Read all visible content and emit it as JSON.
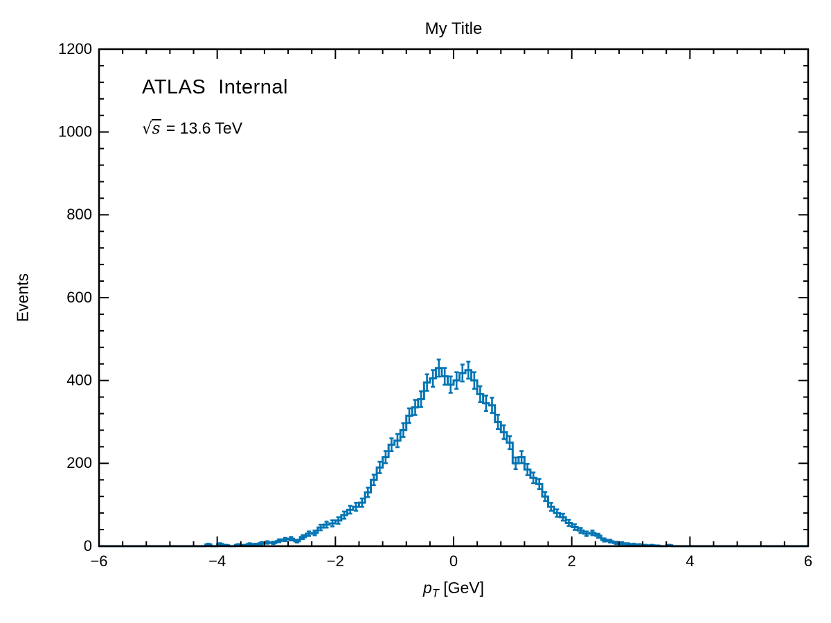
{
  "figure": {
    "title": "My Title",
    "background": "#ffffff"
  },
  "annotations": {
    "experiment": "ATLAS",
    "status": "Internal",
    "sqrt_prefix": "√",
    "sqrt_var": "s",
    "energy_text": " = 13.6 TeV"
  },
  "axes": {
    "ylabel": "Events",
    "xlabel": {
      "var": "p",
      "sub": "T",
      "unit": " [GeV]"
    },
    "x_tick_labels": [
      "−6",
      "−4",
      "−2",
      "0",
      "2",
      "4",
      "6"
    ],
    "y_tick_labels": [
      "0",
      "200",
      "400",
      "600",
      "800",
      "1000",
      "1200"
    ]
  },
  "chart_data": {
    "type": "histogram",
    "title": "My Title",
    "xlabel": "pT [GeV]",
    "ylabel": "Events",
    "xlim": [
      -6,
      6
    ],
    "ylim": [
      0,
      1200
    ],
    "x_major_step": 2,
    "x_minor_step": 0.4,
    "y_major_step": 200,
    "y_minor_step": 40,
    "grid": false,
    "legend": "none",
    "bin_start": -6,
    "bin_width": 0.1,
    "n_bins": 120,
    "errors": "poisson_sqrt",
    "marker_color": "#0173B2",
    "frame_color": "#000000",
    "annotations": [
      "ATLAS Internal",
      "√s = 13.6 TeV"
    ],
    "values": [
      0,
      0,
      0,
      0,
      0,
      0,
      0,
      0,
      0,
      0,
      0,
      0,
      0,
      0,
      0,
      0,
      0,
      0,
      4,
      0,
      5,
      2,
      0,
      3,
      2,
      5,
      4,
      7,
      9,
      8,
      13,
      16,
      18,
      12,
      22,
      30,
      32,
      45,
      52,
      55,
      62,
      75,
      88,
      95,
      105,
      130,
      160,
      190,
      215,
      245,
      255,
      280,
      315,
      335,
      355,
      395,
      405,
      430,
      410,
      390,
      400,
      418,
      425,
      400,
      367,
      345,
      340,
      300,
      275,
      250,
      200,
      215,
      185,
      165,
      150,
      120,
      95,
      80,
      70,
      56,
      46,
      38,
      30,
      32,
      25,
      15,
      12,
      8,
      7,
      5,
      4,
      3,
      2,
      2,
      1,
      0,
      2,
      0,
      0,
      0,
      0,
      0,
      0,
      0,
      0,
      0,
      0,
      0,
      0,
      0,
      0,
      0,
      0,
      0,
      0,
      0,
      0,
      0,
      0,
      0
    ]
  }
}
